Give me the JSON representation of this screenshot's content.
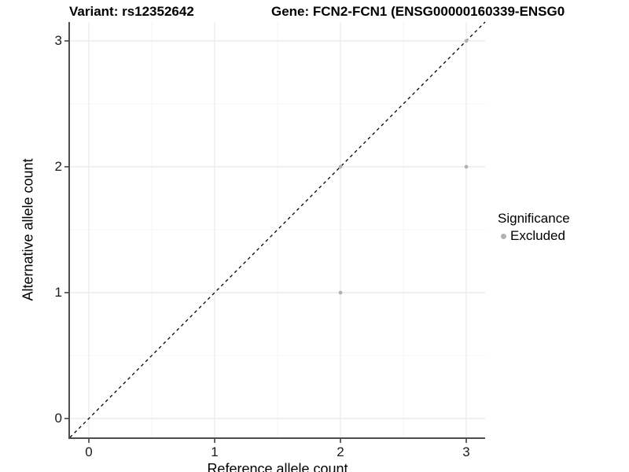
{
  "page": {
    "background": "#ffffff"
  },
  "chart_data": {
    "type": "scatter",
    "title_left": "Variant: rs12352642",
    "title_right": "Gene: FCN2-FCN1 (ENSG00000160339-ENSG0",
    "xlabel": "Reference allele count",
    "ylabel": "Alternative allele count",
    "x_ticks": [
      0,
      1,
      2,
      3
    ],
    "y_ticks": [
      0,
      1,
      2,
      3
    ],
    "x_minor_ticks": [
      0.5,
      1.5,
      2.5
    ],
    "y_minor_ticks": [
      0.5,
      1.5,
      2.5
    ],
    "xlim": [
      -0.15,
      3.15
    ],
    "ylim": [
      -0.15,
      3.15
    ],
    "grid": {
      "major_color": "#e8e8e8",
      "minor_color": "#f4f4f4",
      "on": true
    },
    "axis_line_color": "#4d4d4d",
    "tick_mark_color": "#333333",
    "identity_line": {
      "style": "dashed",
      "color": "#000000",
      "from": [
        -0.15,
        -0.15
      ],
      "to": [
        3.15,
        3.15
      ]
    },
    "series": [
      {
        "name": "Excluded",
        "color": "#b3b3b3",
        "points": [
          [
            2,
            1
          ],
          [
            2,
            2
          ],
          [
            3,
            2
          ],
          [
            3,
            3
          ]
        ]
      }
    ],
    "legend": {
      "position": "right",
      "title": "Significance",
      "entries": [
        {
          "label": "Excluded",
          "color": "#b3b3b3"
        }
      ]
    }
  }
}
